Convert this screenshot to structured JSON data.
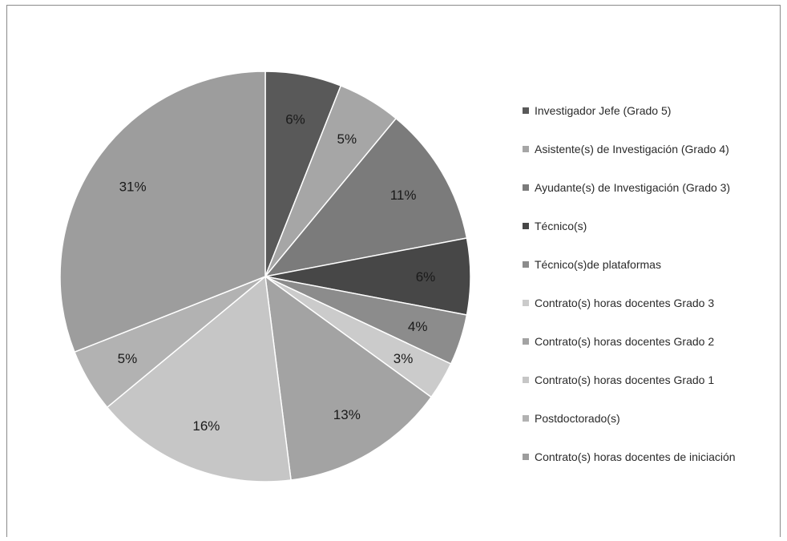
{
  "chart_data": {
    "type": "pie",
    "title": "",
    "legend_position": "right",
    "start_angle_deg": 0,
    "direction": "clockwise",
    "slices": [
      {
        "name": "Investigador Jefe (Grado 5)",
        "value": 6,
        "label": "6%",
        "color": "#595959"
      },
      {
        "name": "Asistente(s) de Investigación (Grado 4)",
        "value": 5,
        "label": "5%",
        "color": "#a6a6a6"
      },
      {
        "name": "Ayudante(s) de Investigación (Grado 3)",
        "value": 11,
        "label": "11%",
        "color": "#7b7b7b"
      },
      {
        "name": "Técnico(s)",
        "value": 6,
        "label": "6%",
        "color": "#474747"
      },
      {
        "name": "Técnico(s)de plataformas",
        "value": 4,
        "label": "4%",
        "color": "#8c8c8c"
      },
      {
        "name": "Contrato(s) horas docentes Grado 3",
        "value": 3,
        "label": "3%",
        "color": "#cbcbcb"
      },
      {
        "name": "Contrato(s) horas docentes Grado 2",
        "value": 13,
        "label": "13%",
        "color": "#a3a3a3"
      },
      {
        "name": "Contrato(s) horas docentes Grado 1",
        "value": 16,
        "label": "16%",
        "color": "#c6c6c6"
      },
      {
        "name": "Postdoctorado(s)",
        "value": 5,
        "label": "5%",
        "color": "#b2b2b2"
      },
      {
        "name": "Contrato(s) horas docentes de iniciación",
        "value": 31,
        "label": "31%",
        "color": "#9d9d9d"
      }
    ]
  }
}
